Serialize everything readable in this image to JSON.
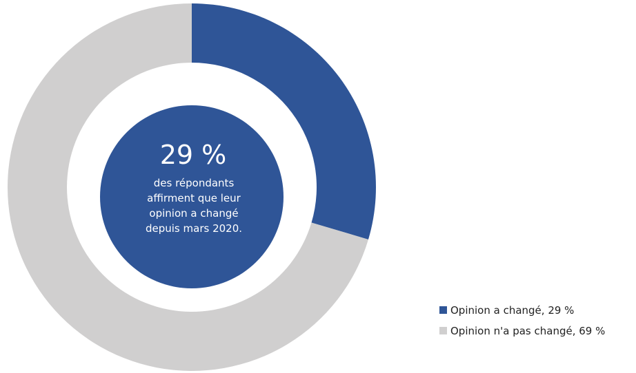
{
  "chart_data": {
    "type": "pie",
    "donut": true,
    "categories": [
      "Opinion a changé",
      "Opinion n'a pas changé"
    ],
    "values": [
      29,
      69
    ],
    "unit": "%",
    "colors": [
      "#2f5597",
      "#d0cfcf"
    ],
    "legend": {
      "placement": "bottom-right",
      "entries": [
        "Opinion a changé, 29 %",
        "Opinion n'a pas changé, 69 %"
      ]
    },
    "center": {
      "value": "29 %",
      "lines": [
        "des répondants",
        "affirment que leur",
        "opinion a changé",
        "depuis mars 2020."
      ],
      "color": "#2f5597"
    }
  }
}
